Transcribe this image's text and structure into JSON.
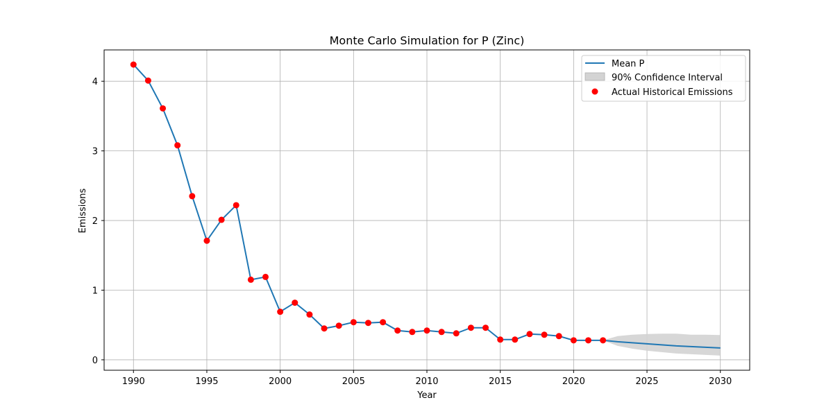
{
  "chart_data": {
    "type": "line",
    "title": "Monte Carlo Simulation for P (Zinc)",
    "xlabel": "Year",
    "ylabel": "Emissions",
    "xlim": [
      1988,
      2032
    ],
    "ylim": [
      -0.15,
      4.45
    ],
    "xticks": [
      1990,
      1995,
      2000,
      2005,
      2010,
      2015,
      2020,
      2025,
      2030
    ],
    "yticks": [
      0,
      1,
      2,
      3,
      4
    ],
    "grid": true,
    "legend_position": "top-right",
    "colors": {
      "mean": "#1f77b4",
      "band": "#d3d3d3",
      "actual": "#ff0000"
    },
    "series": [
      {
        "name": "Mean P",
        "kind": "line",
        "x": [
          1990,
          1991,
          1992,
          1993,
          1994,
          1995,
          1996,
          1997,
          1998,
          1999,
          2000,
          2001,
          2002,
          2003,
          2004,
          2005,
          2006,
          2007,
          2008,
          2009,
          2010,
          2011,
          2012,
          2013,
          2014,
          2015,
          2016,
          2017,
          2018,
          2019,
          2020,
          2021,
          2022,
          2023,
          2024,
          2025,
          2026,
          2027,
          2028,
          2029,
          2030
        ],
        "y": [
          4.24,
          4.01,
          3.61,
          3.08,
          2.35,
          1.71,
          2.01,
          2.22,
          1.15,
          1.19,
          0.69,
          0.82,
          0.65,
          0.45,
          0.49,
          0.54,
          0.53,
          0.54,
          0.42,
          0.4,
          0.42,
          0.4,
          0.38,
          0.46,
          0.46,
          0.29,
          0.29,
          0.37,
          0.36,
          0.34,
          0.28,
          0.28,
          0.28,
          0.26,
          0.245,
          0.23,
          0.215,
          0.2,
          0.19,
          0.18,
          0.17
        ]
      },
      {
        "name": "90% Confidence Interval",
        "kind": "band",
        "x": [
          2022,
          2023,
          2024,
          2025,
          2026,
          2027,
          2028,
          2029,
          2030
        ],
        "lower": [
          0.28,
          0.2,
          0.16,
          0.13,
          0.11,
          0.09,
          0.08,
          0.07,
          0.06
        ],
        "upper": [
          0.28,
          0.34,
          0.36,
          0.37,
          0.375,
          0.375,
          0.36,
          0.36,
          0.355
        ]
      },
      {
        "name": "Actual Historical Emissions",
        "kind": "scatter",
        "x": [
          1990,
          1991,
          1992,
          1993,
          1994,
          1995,
          1996,
          1997,
          1998,
          1999,
          2000,
          2001,
          2002,
          2003,
          2004,
          2005,
          2006,
          2007,
          2008,
          2009,
          2010,
          2011,
          2012,
          2013,
          2014,
          2015,
          2016,
          2017,
          2018,
          2019,
          2020,
          2021,
          2022
        ],
        "y": [
          4.24,
          4.01,
          3.61,
          3.08,
          2.35,
          1.71,
          2.01,
          2.22,
          1.15,
          1.19,
          0.69,
          0.82,
          0.65,
          0.45,
          0.49,
          0.54,
          0.53,
          0.54,
          0.42,
          0.4,
          0.42,
          0.4,
          0.38,
          0.46,
          0.46,
          0.29,
          0.29,
          0.37,
          0.36,
          0.34,
          0.28,
          0.28,
          0.28
        ]
      }
    ]
  }
}
